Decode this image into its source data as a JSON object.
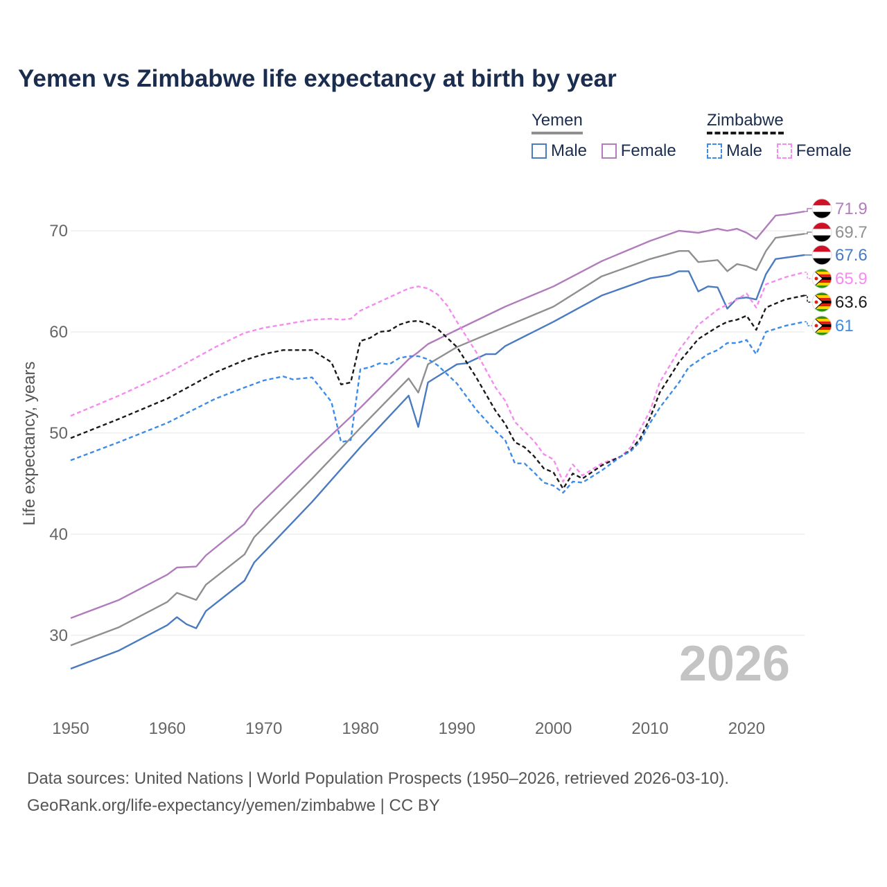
{
  "title": "Yemen vs Zimbabwe life expectancy at birth by year",
  "legend": {
    "yemen": {
      "label": "Yemen",
      "male": "Male",
      "female": "Female"
    },
    "zimbabwe": {
      "label": "Zimbabwe",
      "male": "Male",
      "female": "Female"
    }
  },
  "footer": {
    "line1": "Data sources: United Nations | World Population Prospects (1950–2026, retrieved 2026-03-10).",
    "line2": "GeoRank.org/life-expectancy/yemen/zimbabwe | CC BY"
  },
  "colors": {
    "yemen_male": "#4a7abf",
    "yemen_female": "#b07cbc",
    "yemen_total": "#8f8f8f",
    "zimbabwe_male": "#3d8be8",
    "zimbabwe_female": "#f58bf0",
    "zimbabwe_total": "#1a1a1a",
    "title": "#1b2d4f"
  },
  "chart_data": {
    "type": "line",
    "title": "Yemen vs Zimbabwe life expectancy at birth by year",
    "xlabel": "",
    "ylabel": "Life expectancy, years",
    "xlim": [
      1950,
      2026
    ],
    "ylim": [
      23,
      75
    ],
    "yticks": [
      30,
      40,
      50,
      60,
      70
    ],
    "xticks": [
      1950,
      1960,
      1970,
      1980,
      1990,
      2000,
      2010,
      2020
    ],
    "year_label": "2026",
    "grid": true,
    "series": [
      {
        "name": "Yemen Female",
        "country": "yemen",
        "style": "solid",
        "color": "#b07cbc",
        "end_label": "71.9",
        "points": [
          [
            1950,
            31.7
          ],
          [
            1955,
            33.5
          ],
          [
            1960,
            36.0
          ],
          [
            1961,
            36.7
          ],
          [
            1963,
            36.8
          ],
          [
            1964,
            37.9
          ],
          [
            1968,
            41.0
          ],
          [
            1969,
            42.4
          ],
          [
            1975,
            48.0
          ],
          [
            1980,
            52.5
          ],
          [
            1985,
            57.3
          ],
          [
            1986,
            58.0
          ],
          [
            1987,
            58.8
          ],
          [
            1990,
            60.2
          ],
          [
            1995,
            62.5
          ],
          [
            2000,
            64.5
          ],
          [
            2005,
            67.0
          ],
          [
            2010,
            69.0
          ],
          [
            2013,
            70.0
          ],
          [
            2015,
            69.8
          ],
          [
            2017,
            70.2
          ],
          [
            2018,
            70.0
          ],
          [
            2019,
            70.2
          ],
          [
            2020,
            69.8
          ],
          [
            2021,
            69.2
          ],
          [
            2023,
            71.5
          ],
          [
            2024,
            71.6
          ],
          [
            2026,
            71.9
          ]
        ]
      },
      {
        "name": "Yemen Total",
        "country": "yemen",
        "style": "solid",
        "color": "#8f8f8f",
        "end_label": "69.7",
        "points": [
          [
            1950,
            29.0
          ],
          [
            1955,
            30.8
          ],
          [
            1960,
            33.3
          ],
          [
            1961,
            34.2
          ],
          [
            1963,
            33.5
          ],
          [
            1964,
            35.0
          ],
          [
            1968,
            38.0
          ],
          [
            1969,
            39.7
          ],
          [
            1975,
            45.5
          ],
          [
            1980,
            50.5
          ],
          [
            1985,
            55.4
          ],
          [
            1986,
            54.0
          ],
          [
            1987,
            56.8
          ],
          [
            1990,
            58.5
          ],
          [
            1995,
            60.5
          ],
          [
            2000,
            62.5
          ],
          [
            2005,
            65.5
          ],
          [
            2010,
            67.2
          ],
          [
            2013,
            68.0
          ],
          [
            2014,
            68.0
          ],
          [
            2015,
            66.9
          ],
          [
            2017,
            67.1
          ],
          [
            2018,
            66.0
          ],
          [
            2019,
            66.7
          ],
          [
            2020,
            66.5
          ],
          [
            2021,
            66.1
          ],
          [
            2022,
            68.0
          ],
          [
            2023,
            69.3
          ],
          [
            2026,
            69.7
          ]
        ]
      },
      {
        "name": "Yemen Male",
        "country": "yemen",
        "style": "solid",
        "color": "#4a7abf",
        "end_label": "67.6",
        "points": [
          [
            1950,
            26.7
          ],
          [
            1955,
            28.5
          ],
          [
            1960,
            31.0
          ],
          [
            1961,
            31.8
          ],
          [
            1962,
            31.1
          ],
          [
            1963,
            30.7
          ],
          [
            1964,
            32.4
          ],
          [
            1968,
            35.4
          ],
          [
            1969,
            37.2
          ],
          [
            1975,
            43.2
          ],
          [
            1980,
            48.6
          ],
          [
            1985,
            53.7
          ],
          [
            1986,
            50.6
          ],
          [
            1987,
            55.0
          ],
          [
            1990,
            56.8
          ],
          [
            1991,
            56.9
          ],
          [
            1993,
            57.8
          ],
          [
            1994,
            57.8
          ],
          [
            1995,
            58.6
          ],
          [
            2000,
            61.0
          ],
          [
            2005,
            63.6
          ],
          [
            2010,
            65.3
          ],
          [
            2012,
            65.6
          ],
          [
            2013,
            66.0
          ],
          [
            2014,
            66.0
          ],
          [
            2015,
            64.0
          ],
          [
            2016,
            64.5
          ],
          [
            2017,
            64.4
          ],
          [
            2018,
            62.3
          ],
          [
            2019,
            63.3
          ],
          [
            2020,
            63.4
          ],
          [
            2021,
            63.2
          ],
          [
            2022,
            65.7
          ],
          [
            2023,
            67.2
          ],
          [
            2026,
            67.6
          ]
        ]
      },
      {
        "name": "Zimbabwe Female",
        "country": "zimbabwe",
        "style": "dashed",
        "color": "#f58bf0",
        "end_label": "65.9",
        "points": [
          [
            1950,
            51.7
          ],
          [
            1955,
            53.7
          ],
          [
            1960,
            55.9
          ],
          [
            1965,
            58.5
          ],
          [
            1968,
            59.9
          ],
          [
            1970,
            60.4
          ],
          [
            1975,
            61.2
          ],
          [
            1977,
            61.3
          ],
          [
            1978,
            61.2
          ],
          [
            1979,
            61.3
          ],
          [
            1980,
            62.1
          ],
          [
            1985,
            64.3
          ],
          [
            1986,
            64.5
          ],
          [
            1987,
            64.3
          ],
          [
            1988,
            63.7
          ],
          [
            1989,
            62.6
          ],
          [
            1990,
            61.0
          ],
          [
            1992,
            58.0
          ],
          [
            1994,
            54.5
          ],
          [
            1995,
            53.2
          ],
          [
            1996,
            51.1
          ],
          [
            1998,
            49.2
          ],
          [
            1999,
            47.9
          ],
          [
            2000,
            47.4
          ],
          [
            2001,
            45.2
          ],
          [
            2002,
            46.9
          ],
          [
            2003,
            45.8
          ],
          [
            2005,
            47.0
          ],
          [
            2007,
            47.7
          ],
          [
            2008,
            48.6
          ],
          [
            2009,
            50.4
          ],
          [
            2010,
            52.2
          ],
          [
            2011,
            55.0
          ],
          [
            2013,
            58.2
          ],
          [
            2015,
            60.7
          ],
          [
            2017,
            62.2
          ],
          [
            2019,
            63.2
          ],
          [
            2020,
            63.8
          ],
          [
            2021,
            62.4
          ],
          [
            2022,
            64.7
          ],
          [
            2024,
            65.4
          ],
          [
            2026,
            65.9
          ]
        ]
      },
      {
        "name": "Zimbabwe Total",
        "country": "zimbabwe",
        "style": "dashed",
        "color": "#1a1a1a",
        "end_label": "63.6",
        "points": [
          [
            1950,
            49.5
          ],
          [
            1955,
            51.4
          ],
          [
            1960,
            53.4
          ],
          [
            1965,
            56.0
          ],
          [
            1968,
            57.2
          ],
          [
            1970,
            57.8
          ],
          [
            1972,
            58.2
          ],
          [
            1975,
            58.2
          ],
          [
            1977,
            57.0
          ],
          [
            1978,
            54.8
          ],
          [
            1979,
            55.0
          ],
          [
            1980,
            59.1
          ],
          [
            1981,
            59.4
          ],
          [
            1982,
            60.0
          ],
          [
            1983,
            60.1
          ],
          [
            1984,
            60.7
          ],
          [
            1985,
            61.0
          ],
          [
            1986,
            61.1
          ],
          [
            1987,
            60.8
          ],
          [
            1988,
            60.3
          ],
          [
            1990,
            58.5
          ],
          [
            1992,
            55.5
          ],
          [
            1994,
            52.2
          ],
          [
            1995,
            50.9
          ],
          [
            1996,
            49.1
          ],
          [
            1997,
            48.6
          ],
          [
            1998,
            47.7
          ],
          [
            1999,
            46.5
          ],
          [
            2000,
            46.1
          ],
          [
            2001,
            44.5
          ],
          [
            2002,
            46.0
          ],
          [
            2003,
            45.5
          ],
          [
            2005,
            46.8
          ],
          [
            2007,
            47.7
          ],
          [
            2008,
            48.3
          ],
          [
            2009,
            49.5
          ],
          [
            2010,
            51.5
          ],
          [
            2011,
            54.0
          ],
          [
            2013,
            57.0
          ],
          [
            2015,
            59.3
          ],
          [
            2017,
            60.5
          ],
          [
            2018,
            61.0
          ],
          [
            2019,
            61.2
          ],
          [
            2020,
            61.6
          ],
          [
            2021,
            60.2
          ],
          [
            2022,
            62.4
          ],
          [
            2024,
            63.2
          ],
          [
            2026,
            63.6
          ]
        ]
      },
      {
        "name": "Zimbabwe Male",
        "country": "zimbabwe",
        "style": "dashed",
        "color": "#3d8be8",
        "end_label": "61",
        "points": [
          [
            1950,
            47.3
          ],
          [
            1955,
            49.1
          ],
          [
            1960,
            51.0
          ],
          [
            1965,
            53.4
          ],
          [
            1968,
            54.5
          ],
          [
            1970,
            55.2
          ],
          [
            1972,
            55.6
          ],
          [
            1973,
            55.3
          ],
          [
            1975,
            55.5
          ],
          [
            1977,
            53.1
          ],
          [
            1978,
            49.1
          ],
          [
            1979,
            49.3
          ],
          [
            1980,
            56.3
          ],
          [
            1981,
            56.5
          ],
          [
            1982,
            56.9
          ],
          [
            1983,
            56.8
          ],
          [
            1984,
            57.4
          ],
          [
            1985,
            57.6
          ],
          [
            1986,
            57.6
          ],
          [
            1987,
            57.3
          ],
          [
            1988,
            56.7
          ],
          [
            1990,
            54.9
          ],
          [
            1992,
            52.3
          ],
          [
            1994,
            50.2
          ],
          [
            1995,
            49.3
          ],
          [
            1996,
            47.0
          ],
          [
            1997,
            47.0
          ],
          [
            1998,
            46.1
          ],
          [
            1999,
            45.1
          ],
          [
            2000,
            44.8
          ],
          [
            2001,
            44.1
          ],
          [
            2002,
            45.2
          ],
          [
            2003,
            45.1
          ],
          [
            2005,
            46.3
          ],
          [
            2007,
            47.7
          ],
          [
            2008,
            48.2
          ],
          [
            2009,
            49.2
          ],
          [
            2010,
            51.0
          ],
          [
            2011,
            52.5
          ],
          [
            2013,
            55.0
          ],
          [
            2014,
            56.5
          ],
          [
            2016,
            57.8
          ],
          [
            2017,
            58.2
          ],
          [
            2018,
            58.9
          ],
          [
            2019,
            58.9
          ],
          [
            2020,
            59.2
          ],
          [
            2021,
            57.8
          ],
          [
            2022,
            60.0
          ],
          [
            2024,
            60.6
          ],
          [
            2026,
            61.0
          ]
        ]
      }
    ]
  }
}
